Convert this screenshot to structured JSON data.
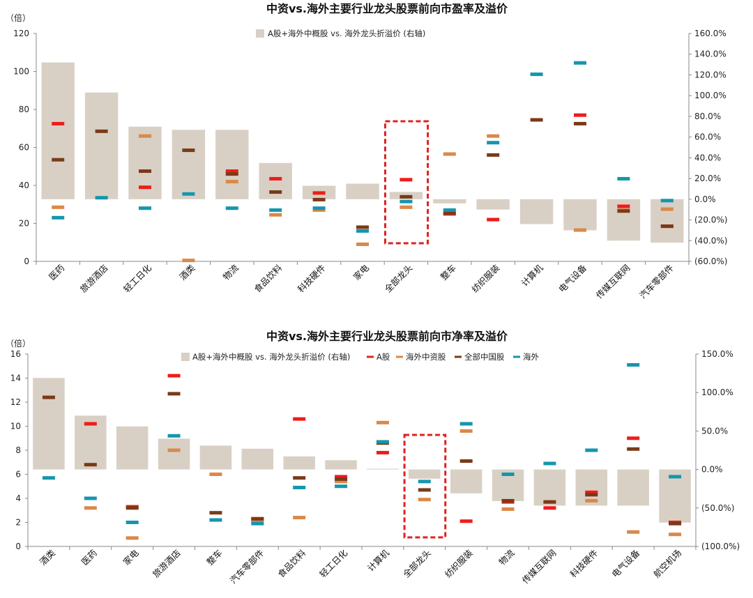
{
  "colors": {
    "bar": "#d9d0c5",
    "a_share": "#ee1c1c",
    "overseas_china": "#d9894a",
    "all_china": "#7a3a18",
    "overseas": "#1596ad",
    "dashed_box": "#e02020"
  },
  "chart_data": [
    {
      "type": "bar",
      "title": "中资vs.海外主要行业龙头股票前向市盈率及溢价",
      "left_unit": "（倍）",
      "left_ylim": [
        0,
        120
      ],
      "left_ticks": [
        "0",
        "20",
        "40",
        "60",
        "80",
        "100",
        "120"
      ],
      "right_ylim": [
        -60,
        160
      ],
      "right_ticks": [
        "(60.0%)",
        "(40.0%)",
        "(20.0%)",
        "0.0%",
        "20.0%",
        "40.0%",
        "60.0%",
        "80.0%",
        "100.0%",
        "120.0%",
        "140.0%",
        "160.0%"
      ],
      "legend": [
        "A股+海外中概股 vs. 海外龙头折溢价 (右轴)"
      ],
      "legend_placement": "top-center",
      "highlight_category": "全部龙头",
      "categories": [
        "医药",
        "旅游酒店",
        "轻工日化",
        "酒类",
        "物流",
        "食品饮料",
        "科技硬件",
        "家电",
        "全部龙头",
        "整车",
        "纺织服装",
        "计算机",
        "电气设备",
        "传媒互联网",
        "汽车零部件"
      ],
      "premium_pct": [
        132,
        103,
        70,
        67,
        67,
        35,
        13,
        15,
        7,
        -4,
        -10,
        -24,
        -30,
        -40,
        -42
      ],
      "a_share": [
        72.5,
        null,
        39,
        null,
        47.5,
        43.5,
        36,
        null,
        43,
        25,
        22,
        null,
        77,
        29,
        18.5
      ],
      "overseas_china": [
        28.5,
        null,
        66,
        0.5,
        42,
        24.5,
        27,
        9,
        28.5,
        56.5,
        66,
        null,
        16.5,
        27,
        27.5
      ],
      "all_china": [
        53.5,
        68.5,
        47.5,
        58.5,
        46,
        36.5,
        32.5,
        18,
        34,
        25.5,
        56,
        74.5,
        72.5,
        26.5,
        18.5
      ],
      "overseas": [
        23,
        33.5,
        28,
        35.5,
        28,
        27,
        28,
        16,
        31.5,
        27,
        62.5,
        98.5,
        104.5,
        43.5,
        32
      ]
    },
    {
      "type": "bar",
      "title": "中资vs.海外主要行业龙头股票前向市净率及溢价",
      "left_unit": "（倍）",
      "left_ylim": [
        0,
        16
      ],
      "left_ticks": [
        "0",
        "2",
        "4",
        "6",
        "8",
        "10",
        "12",
        "14",
        "16"
      ],
      "right_ylim": [
        -100,
        150
      ],
      "right_ticks": [
        "(100.0%)",
        "(50.0%)",
        "0.0%",
        "50.0%",
        "100.0%",
        "150.0%"
      ],
      "legend": [
        "A股+海外中概股 vs. 海外龙头折溢价 (右轴)",
        "A股",
        "海外中资股",
        "全部中国股",
        "海外"
      ],
      "legend_placement": "top-center",
      "highlight_category": "全部龙头",
      "categories": [
        "酒类",
        "医药",
        "家电",
        "旅游酒店",
        "整车",
        "汽车零部件",
        "食品饮料",
        "轻工日化",
        "计算机",
        "全部龙头",
        "纺织服装",
        "物流",
        "传媒互联网",
        "科技硬件",
        "电气设备",
        "航空机场"
      ],
      "premium_pct": [
        119,
        70,
        56,
        40,
        31,
        27,
        17,
        12,
        1,
        -12,
        -31,
        -41,
        -47,
        -47,
        -47,
        -69
      ],
      "a_share": [
        null,
        10.2,
        3.3,
        14.2,
        null,
        2.3,
        10.6,
        5.8,
        7.8,
        null,
        2.1,
        3.7,
        3.2,
        4.5,
        9.0,
        2.0
      ],
      "overseas_china": [
        null,
        3.2,
        0.7,
        8.0,
        6.0,
        2.1,
        2.4,
        5.4,
        10.3,
        3.9,
        9.6,
        3.1,
        3.7,
        3.8,
        1.2,
        1.0
      ],
      "all_china": [
        12.4,
        6.8,
        3.2,
        12.7,
        2.8,
        2.3,
        5.7,
        5.6,
        8.6,
        4.7,
        7.1,
        3.8,
        3.7,
        4.3,
        8.1,
        1.9
      ],
      "overseas": [
        5.7,
        4.0,
        2.0,
        9.2,
        2.2,
        1.9,
        4.9,
        5.0,
        8.7,
        5.4,
        10.2,
        6.0,
        6.9,
        8.0,
        15.1,
        5.8
      ]
    }
  ]
}
